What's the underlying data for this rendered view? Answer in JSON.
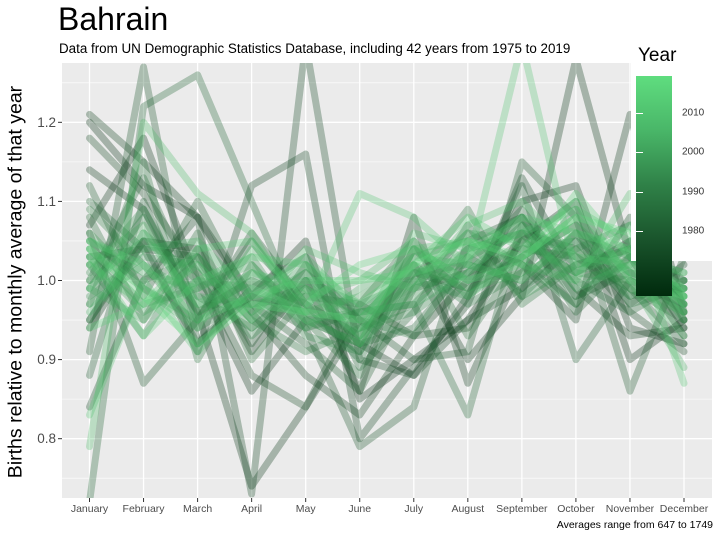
{
  "title": "Bahrain",
  "subtitle": "Data from UN Demographic Statistics Database, including 42 years from 1975 to 2019",
  "caption": "Averages range from 647 to 1749",
  "colors": {
    "panel": "#ebebeb",
    "grid": "#ffffff",
    "low_year": "#002a0d",
    "high_year": "#5fdd7f"
  },
  "legend": {
    "title": "Year",
    "ticks": [
      "2010",
      "2000",
      "1990",
      "1980"
    ]
  },
  "chart_data": {
    "type": "line",
    "ylabel": "Births relative to monthly average of that year",
    "xlabel": "",
    "categories": [
      "January",
      "February",
      "March",
      "April",
      "May",
      "June",
      "July",
      "August",
      "September",
      "October",
      "November",
      "December"
    ],
    "ylim": [
      0.725,
      1.275
    ],
    "yticks": [
      "0.8",
      "0.9",
      "1.0",
      "1.1",
      "1.2"
    ],
    "ytick_values": [
      0.8,
      0.9,
      1.0,
      1.1,
      1.2
    ],
    "year_range": [
      1975,
      2019
    ],
    "grid": true,
    "legend_position": "top-right",
    "series": [
      {
        "year": 1975,
        "values": [
          1.2,
          1.12,
          1.08,
          0.98,
          1.05,
          0.85,
          0.9,
          0.95,
          1.05,
          1.1,
          0.9,
          0.95
        ]
      },
      {
        "year": 1976,
        "values": [
          1.07,
          1.18,
          1.0,
          0.86,
          0.95,
          0.92,
          0.88,
          0.98,
          1.1,
          1.12,
          0.94,
          0.92
        ]
      },
      {
        "year": 1977,
        "values": [
          1.14,
          1.09,
          0.96,
          0.74,
          0.84,
          0.95,
          1.02,
          0.9,
          0.98,
          1.28,
          1.03,
          0.93
        ]
      },
      {
        "year": 1978,
        "values": [
          0.94,
          1.05,
          1.04,
          0.91,
          1.0,
          0.86,
          1.08,
          0.87,
          1.02,
          0.95,
          1.21,
          0.96
        ]
      },
      {
        "year": 1979,
        "values": [
          1.21,
          1.15,
          1.08,
          0.96,
          0.88,
          0.83,
          0.93,
          1.0,
          1.08,
          0.99,
          0.93,
          0.94
        ]
      },
      {
        "year": 1980,
        "values": [
          0.95,
          1.05,
          0.91,
          1.12,
          1.16,
          0.8,
          0.89,
          0.97,
          1.13,
          1.01,
          1.05,
          0.94
        ]
      },
      {
        "year": 1981,
        "values": [
          0.84,
          1.0,
          1.08,
          0.73,
          1.3,
          0.9,
          0.88,
          0.95,
          0.99,
          1.06,
          0.97,
          1.02
        ]
      },
      {
        "year": 1982,
        "values": [
          1.18,
          1.11,
          1.01,
          0.88,
          0.84,
          0.97,
          0.93,
          0.94,
          1.06,
          1.04,
          0.96,
          0.91
        ]
      },
      {
        "year": 1983,
        "values": [
          1.06,
          0.87,
          0.95,
          1.06,
          0.97,
          0.93,
          1.01,
          0.99,
          1.03,
          0.97,
          1.08,
          0.95
        ]
      },
      {
        "year": 1984,
        "values": [
          0.91,
          1.27,
          0.92,
          0.98,
          0.94,
          0.79,
          0.84,
          1.05,
          1.08,
          0.98,
          1.01,
          0.96
        ]
      },
      {
        "year": 1985,
        "values": [
          1.03,
          1.04,
          1.03,
          0.92,
          1.02,
          0.95,
          0.9,
          0.91,
          1.15,
          1.08,
          0.86,
          1.03
        ]
      },
      {
        "year": 1986,
        "values": [
          0.88,
          1.1,
          0.95,
          1.05,
          0.96,
          0.91,
          1.04,
          0.98,
          1.12,
          0.9,
          1.0,
          0.97
        ]
      },
      {
        "year": 1987,
        "values": [
          1.12,
          0.98,
          1.1,
          0.97,
          0.92,
          0.86,
          0.99,
          1.01,
          1.04,
          1.03,
          0.99,
          0.92
        ]
      },
      {
        "year": 1988,
        "values": [
          0.72,
          1.22,
          1.26,
          1.1,
          0.94,
          0.96,
          0.97,
          0.83,
          1.07,
          0.96,
          1.03,
          1.0
        ]
      },
      {
        "year": 1989,
        "values": [
          1.1,
          1.04,
          0.92,
          0.99,
          1.03,
          0.89,
          0.96,
          1.07,
          0.98,
          1.05,
          0.98,
          0.99
        ]
      },
      {
        "year": 1990,
        "values": [
          1.0,
          1.13,
          0.98,
          0.94,
          1.0,
          0.92,
          0.94,
          1.02,
          1.09,
          1.0,
          0.96,
          1.0
        ]
      },
      {
        "year": 1991,
        "values": [
          1.08,
          0.95,
          1.06,
          0.9,
          0.98,
          0.97,
          1.05,
          0.93,
          1.03,
          1.07,
          0.99,
          0.95
        ]
      },
      {
        "year": 1992,
        "values": [
          0.97,
          1.15,
          0.9,
          1.02,
          0.95,
          0.88,
          1.0,
          1.09,
          0.97,
          1.02,
          1.04,
          0.98
        ]
      },
      {
        "year": 1993,
        "values": [
          1.05,
          1.0,
          1.03,
          0.95,
          0.91,
          0.94,
          0.97,
          1.04,
          1.06,
          0.98,
          1.03,
          1.01
        ]
      },
      {
        "year": 1994,
        "values": [
          0.99,
          1.08,
          0.96,
          1.0,
          0.97,
          0.9,
          1.02,
          0.97,
          1.01,
          1.09,
          0.97,
          0.99
        ]
      },
      {
        "year": 1995,
        "values": [
          1.02,
          0.93,
          1.04,
          0.96,
          1.01,
          0.95,
          0.93,
          1.03,
          0.99,
          1.04,
          1.07,
          0.97
        ]
      },
      {
        "year": 1996,
        "values": [
          1.09,
          1.02,
          0.94,
          0.98,
          0.96,
          0.92,
          1.04,
          1.0,
          1.05,
          1.01,
          1.0,
          0.96
        ]
      },
      {
        "year": 1997,
        "values": [
          0.95,
          1.06,
          1.0,
          0.93,
          0.99,
          0.96,
          0.99,
          1.06,
          1.02,
          0.97,
          1.05,
          1.0
        ]
      },
      {
        "year": 1998,
        "values": [
          1.04,
          0.97,
          0.99,
          1.03,
          0.93,
          0.91,
          1.01,
          1.02,
          1.0,
          1.06,
          1.03,
          0.98
        ]
      },
      {
        "year": 1999,
        "values": [
          1.01,
          1.09,
          0.97,
          0.97,
          0.98,
          0.94,
          0.96,
          1.01,
          1.07,
          1.03,
          0.98,
          1.0
        ]
      },
      {
        "year": 2000,
        "values": [
          0.98,
          1.03,
          1.02,
          0.95,
          1.0,
          0.97,
          1.0,
          0.98,
          1.04,
          1.05,
          1.01,
          0.99
        ]
      },
      {
        "year": 2001,
        "values": [
          1.06,
          0.99,
          0.95,
          1.01,
          0.97,
          0.93,
          1.03,
          1.05,
          0.98,
          1.02,
          1.04,
          0.97
        ]
      },
      {
        "year": 2002,
        "values": [
          1.0,
          1.05,
          1.01,
          0.94,
          0.99,
          0.95,
          0.98,
          1.03,
          1.06,
          1.0,
          1.02,
          0.98
        ]
      },
      {
        "year": 2003,
        "values": [
          1.03,
          0.96,
          1.0,
          0.99,
          0.95,
          0.96,
          1.01,
          1.0,
          1.03,
          1.07,
          1.01,
          0.99
        ]
      },
      {
        "year": 2004,
        "values": [
          0.97,
          1.02,
          0.98,
          0.97,
          1.01,
          0.92,
          0.99,
          1.04,
          1.08,
          1.02,
          1.03,
          0.97
        ]
      },
      {
        "year": 2005,
        "values": [
          1.02,
          1.07,
          0.96,
          1.0,
          0.96,
          0.98,
          1.02,
          0.99,
          1.01,
          1.04,
          0.99,
          0.96
        ]
      },
      {
        "year": 2006,
        "values": [
          0.99,
          0.95,
          1.03,
          0.96,
          1.02,
          0.94,
          1.0,
          1.06,
          1.05,
          1.01,
          1.04,
          0.95
        ]
      },
      {
        "year": 2007,
        "values": [
          1.05,
          1.01,
          0.99,
          1.02,
          0.94,
          0.99,
          1.03,
          1.02,
          1.0,
          1.06,
          1.0,
          0.89
        ]
      },
      {
        "year": 2008,
        "values": [
          0.96,
          1.04,
          1.05,
          0.98,
          1.03,
          0.96,
          0.97,
          1.01,
          1.07,
          0.99,
          1.02,
          1.08
        ]
      },
      {
        "year": 2009,
        "values": [
          1.04,
          0.99,
          0.94,
          1.04,
          0.98,
          1.0,
          1.05,
          0.98,
          1.03,
          1.08,
          1.01,
          0.93
        ]
      },
      {
        "year": 2010,
        "values": [
          0.79,
          1.2,
          1.11,
          1.06,
          0.95,
          0.92,
          1.04,
          1.05,
          1.02,
          1.0,
          1.11,
          1.04
        ]
      },
      {
        "year": 2011,
        "values": [
          1.02,
          0.97,
          1.02,
          0.95,
          1.04,
          1.01,
          0.99,
          1.07,
          1.1,
          1.03,
          1.02,
          0.97
        ]
      },
      {
        "year": 2012,
        "values": [
          0.99,
          1.06,
          0.97,
          1.01,
          0.99,
          0.93,
          1.06,
          1.04,
          1.06,
          1.09,
          1.05,
          0.96
        ]
      },
      {
        "year": 2013,
        "values": [
          0.83,
          1.0,
          0.91,
          0.99,
          0.96,
          1.11,
          1.08,
          1.02,
          1.3,
          1.01,
          1.07,
          0.87
        ]
      },
      {
        "year": 2014,
        "values": [
          1.03,
          0.93,
          1.0,
          1.03,
          1.02,
          0.97,
          1.02,
          1.08,
          1.04,
          1.1,
          1.0,
          0.98
        ]
      },
      {
        "year": 2015,
        "values": [
          1.05,
          1.02,
          0.95,
          0.98,
          1.0,
          1.0,
          1.01,
          1.03,
          1.08,
          1.06,
          1.04,
          0.99
        ]
      },
      {
        "year": 2016,
        "values": [
          0.94,
          0.97,
          1.04,
          1.05,
          0.97,
          1.02,
          1.04,
          1.0,
          1.02,
          1.11,
          1.03,
          1.01
        ]
      },
      {
        "year": 2019,
        "values": [
          1.04,
          0.98,
          0.92,
          0.97,
          0.96,
          0.95,
          1.02,
          1.05,
          1.03,
          1.08,
          1.06,
          0.98
        ]
      }
    ]
  }
}
